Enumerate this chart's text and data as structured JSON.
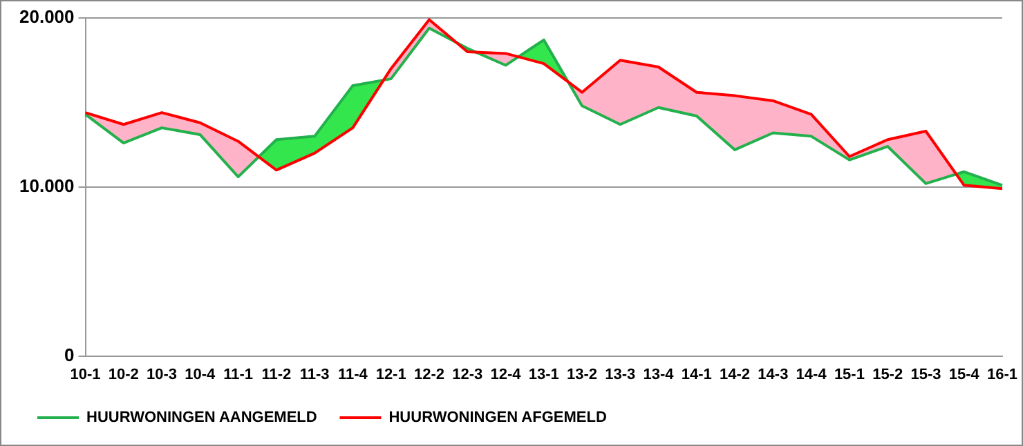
{
  "chart_data": {
    "type": "line",
    "categories": [
      "10-1",
      "10-2",
      "10-3",
      "10-4",
      "11-1",
      "11-2",
      "11-3",
      "11-4",
      "12-1",
      "12-2",
      "12-3",
      "12-4",
      "13-1",
      "13-2",
      "13-3",
      "13-4",
      "14-1",
      "14-2",
      "14-3",
      "14-4",
      "15-1",
      "15-2",
      "15-3",
      "15-4",
      "16-1"
    ],
    "series": [
      {
        "name": "HUURWONINGEN AANGEMELD",
        "color": "#22b14c",
        "values": [
          14300,
          12600,
          13500,
          13100,
          10600,
          12800,
          13000,
          16000,
          16400,
          19400,
          18200,
          17200,
          18700,
          14800,
          13700,
          14700,
          14200,
          12200,
          13200,
          13000,
          11600,
          12400,
          10200,
          10900,
          10100
        ]
      },
      {
        "name": "HUURWONINGEN AFGEMELD",
        "color": "#ff0000",
        "values": [
          14400,
          13700,
          14400,
          13800,
          12700,
          11000,
          12000,
          13500,
          17000,
          19900,
          18000,
          17900,
          17300,
          15600,
          17500,
          17100,
          15600,
          15400,
          15100,
          14300,
          11800,
          12800,
          13300,
          10100,
          9900
        ]
      }
    ],
    "ylim": [
      0,
      20000
    ],
    "yticks": [
      {
        "value": 0,
        "label": "0"
      },
      {
        "value": 10000,
        "label": "10.000"
      },
      {
        "value": 20000,
        "label": "20.000"
      }
    ],
    "grid": "y",
    "legend": "bottom left",
    "marker": "none",
    "line_style": "solid"
  }
}
